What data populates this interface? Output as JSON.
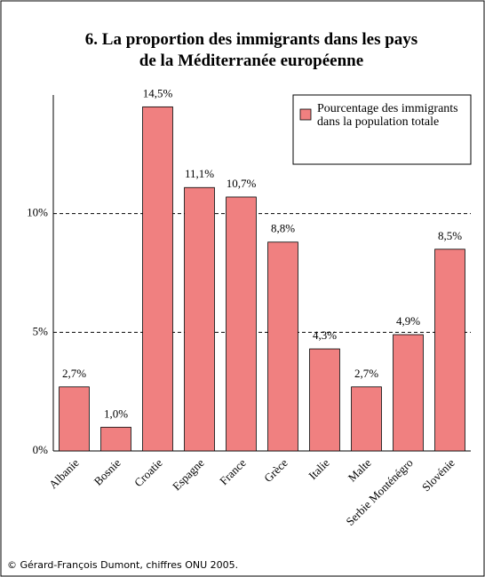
{
  "chart_data": {
    "type": "bar",
    "title": "6. La proportion des immigrants dans les pays de la Méditerranée européenne",
    "categories": [
      "Albanie",
      "Bosnie",
      "Croatie",
      "Espagne",
      "France",
      "Grèce",
      "Italie",
      "Malte",
      "Serbie Monténégro",
      "Slovénie"
    ],
    "series": [
      {
        "name": "Pourcentage des immigrants dans la population totale",
        "color": "#f08080",
        "values": [
          2.7,
          1.0,
          14.5,
          11.1,
          10.7,
          8.8,
          4.3,
          2.7,
          4.9,
          8.5
        ],
        "value_labels": [
          "2,7%",
          "1,0%",
          "14,5%",
          "11,1%",
          "10,7%",
          "8,8%",
          "4,3%",
          "2,7%",
          "4,9%",
          "8,5%"
        ]
      }
    ],
    "ylim": [
      0,
      15
    ],
    "yticks": [
      {
        "value": 0,
        "label": "0%"
      },
      {
        "value": 5,
        "label": "5%"
      },
      {
        "value": 10,
        "label": "10%"
      }
    ],
    "grid": true,
    "legend": "top-right",
    "source": "© Gérard-François Dumont, chiffres ONU 2005."
  }
}
